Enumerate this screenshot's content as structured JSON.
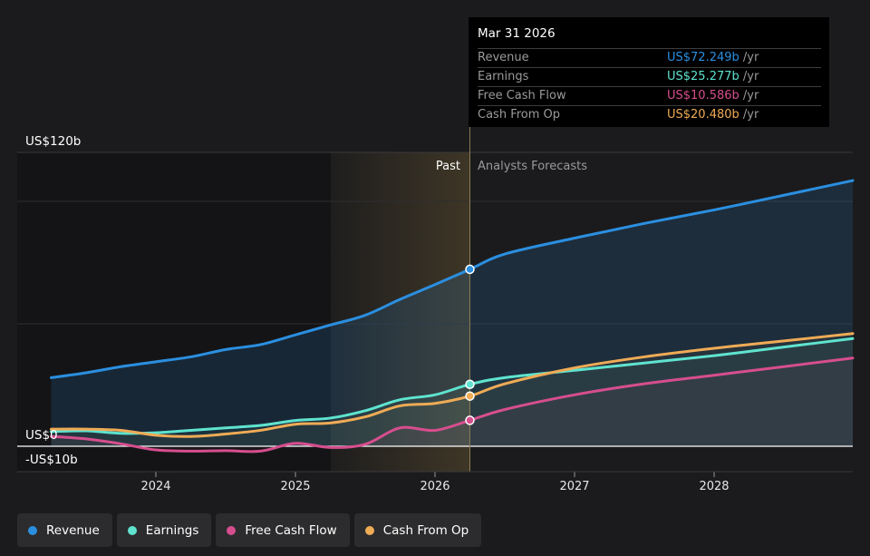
{
  "chart_data": {
    "type": "line",
    "y_axis": {
      "top_label": "US$120b",
      "zero_label": "US$0",
      "bottom_label": "-US$10b",
      "min": -10,
      "max": 120
    },
    "x_ticks": [
      "2024",
      "2025",
      "2026",
      "2027",
      "2028"
    ],
    "x_tick_values": [
      2024.0,
      2025.0,
      2026.0,
      2027.0,
      2028.0
    ],
    "x_range": [
      2023.0,
      2029.0
    ],
    "past_label": "Past",
    "forecast_label": "Analysts Forecasts",
    "highlight_start": 2025.25,
    "divider_x": 2026.25,
    "series": [
      {
        "name": "Revenue",
        "color": "#2b8fe0",
        "x": [
          2023.25,
          2023.5,
          2023.75,
          2024.0,
          2024.25,
          2024.5,
          2024.75,
          2025.0,
          2025.25,
          2025.5,
          2025.75,
          2026.0,
          2026.25,
          2026.5,
          2027.0,
          2027.5,
          2028.0,
          2028.5,
          2029.0
        ],
        "values": [
          28,
          30,
          32.5,
          34.5,
          36.5,
          39.5,
          41.5,
          45.5,
          49.5,
          53.5,
          60,
          66,
          72.249,
          78.5,
          85,
          91,
          96.5,
          102.5,
          108.5
        ]
      },
      {
        "name": "Earnings",
        "color": "#5fe3cf",
        "x": [
          2023.25,
          2023.5,
          2023.75,
          2024.0,
          2024.25,
          2024.5,
          2024.75,
          2025.0,
          2025.25,
          2025.5,
          2025.75,
          2026.0,
          2026.25,
          2026.5,
          2027.0,
          2027.5,
          2028.0,
          2028.5,
          2029.0
        ],
        "values": [
          6,
          6.3,
          5.3,
          5.5,
          6.5,
          7.5,
          8.5,
          10.5,
          11.5,
          14.5,
          19,
          21,
          25.277,
          28,
          31,
          34,
          37,
          40.5,
          44
        ]
      },
      {
        "name": "Free Cash Flow",
        "color": "#d64e8e",
        "x": [
          2023.25,
          2023.5,
          2023.75,
          2024.0,
          2024.25,
          2024.5,
          2024.75,
          2025.0,
          2025.25,
          2025.5,
          2025.75,
          2026.0,
          2026.25,
          2026.5,
          2027.0,
          2027.5,
          2028.0,
          2028.5,
          2029.0
        ],
        "values": [
          4,
          3,
          1,
          -1.5,
          -2,
          -1.8,
          -2,
          1.2,
          -0.5,
          0.8,
          7.5,
          6.5,
          10.586,
          15,
          21,
          25.5,
          29,
          32.5,
          36
        ]
      },
      {
        "name": "Cash From Op",
        "color": "#efab56",
        "x": [
          2023.25,
          2023.5,
          2023.75,
          2024.0,
          2024.25,
          2024.5,
          2024.75,
          2025.0,
          2025.25,
          2025.5,
          2025.75,
          2026.0,
          2026.25,
          2026.5,
          2027.0,
          2027.5,
          2028.0,
          2028.5,
          2029.0
        ],
        "values": [
          7,
          7,
          6.5,
          4.5,
          4,
          5,
          6.5,
          9,
          9.5,
          12,
          16.5,
          17.5,
          20.48,
          25.5,
          32,
          36.5,
          40,
          43,
          46
        ]
      }
    ],
    "tooltip": {
      "date": "Mar 31 2026",
      "rows": [
        {
          "name": "Revenue",
          "value": "US$72.249b",
          "unit": "/yr",
          "color": "#2b8fe0"
        },
        {
          "name": "Earnings",
          "value": "US$25.277b",
          "unit": "/yr",
          "color": "#5fe3cf"
        },
        {
          "name": "Free Cash Flow",
          "value": "US$10.586b",
          "unit": "/yr",
          "color": "#d64e8e"
        },
        {
          "name": "Cash From Op",
          "value": "US$20.480b",
          "unit": "/yr",
          "color": "#efab56"
        }
      ]
    },
    "legend": {
      "position": "bottom-left"
    }
  },
  "legend": [
    {
      "label": "Revenue",
      "color": "#2b8fe0"
    },
    {
      "label": "Earnings",
      "color": "#5fe3cf"
    },
    {
      "label": "Free Cash Flow",
      "color": "#d64e8e"
    },
    {
      "label": "Cash From Op",
      "color": "#efab56"
    }
  ]
}
